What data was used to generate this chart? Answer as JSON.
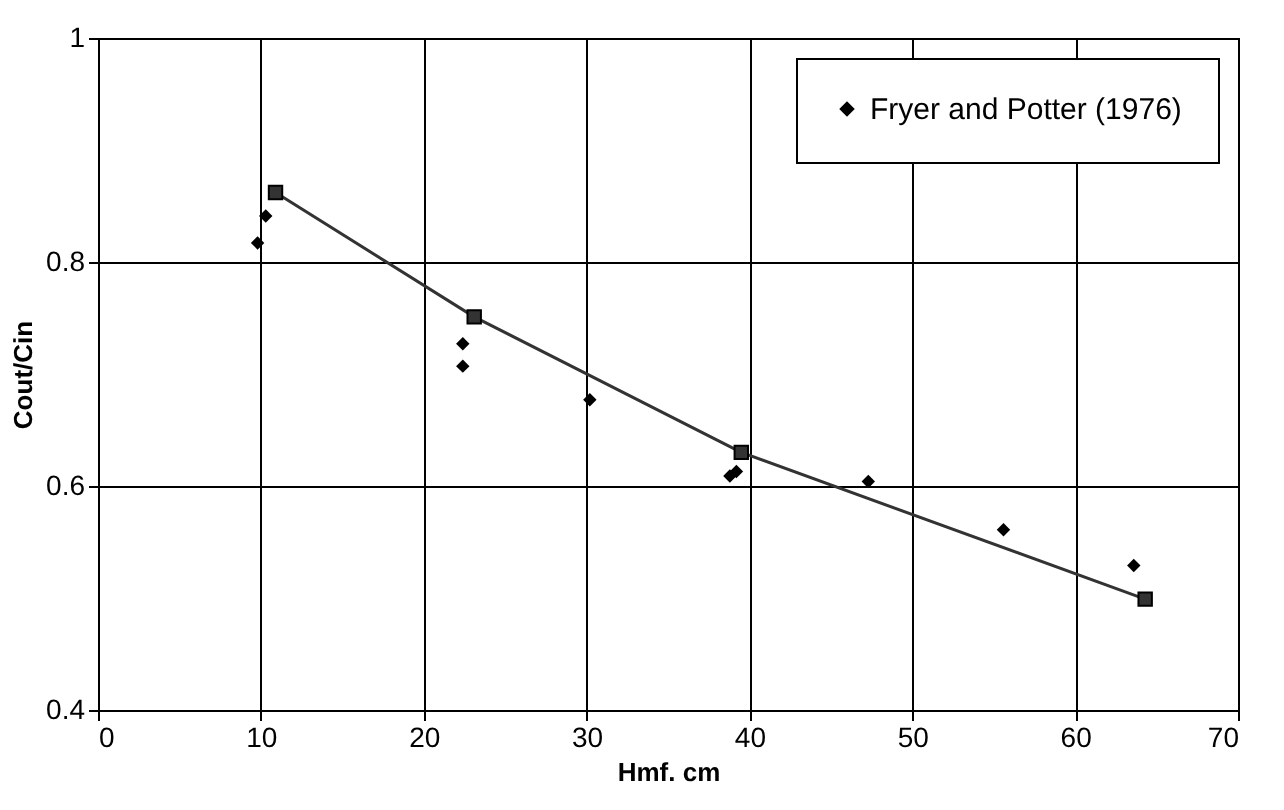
{
  "chart_data": {
    "type": "scatter",
    "xlabel": "Hmf. cm",
    "ylabel": "Cout/Cin",
    "xlim": [
      0,
      70
    ],
    "xticks": [
      0,
      10,
      20,
      30,
      40,
      50,
      60,
      70
    ],
    "ylim": [
      0.4,
      1
    ],
    "yticks": [
      0.4,
      0.6,
      0.8,
      1
    ],
    "grid": true,
    "legend": "top right",
    "series": [
      {
        "name": "Fryer and Potter (1976)",
        "marker": "diamond",
        "color": "#000000",
        "x": [
          9.8,
          10.3,
          22.4,
          22.4,
          30.2,
          38.8,
          39.2,
          47.3,
          55.6,
          63.6
        ],
        "values": [
          0.817,
          0.841,
          0.727,
          0.707,
          0.677,
          0.609,
          0.613,
          0.604,
          0.561,
          0.529
        ]
      },
      {
        "type": "line",
        "marker": "square",
        "color": "#333333",
        "x": [
          10.9,
          23.1,
          39.5,
          64.3
        ],
        "values": [
          0.862,
          0.751,
          0.63,
          0.499
        ]
      }
    ]
  }
}
